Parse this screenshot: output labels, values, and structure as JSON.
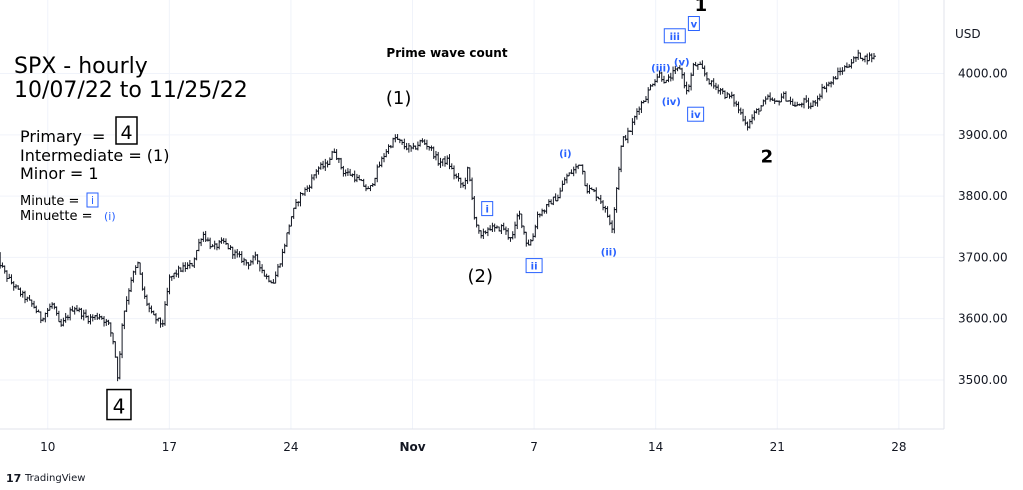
{
  "chart_data": {
    "type": "ohlc",
    "title": "SPX - hourly",
    "subtitle": "10/07/22 to 11/25/22",
    "chart_caption": "Prime wave count",
    "currency": "USD",
    "grid": true,
    "ylim": [
      3420,
      4120
    ],
    "y_ticks": [
      "3500.00",
      "3600.00",
      "3700.00",
      "3800.00",
      "3900.00",
      "4000.00"
    ],
    "y_tick_values": [
      3500,
      3600,
      3700,
      3800,
      3900,
      4000
    ],
    "x_ticks": [
      "10",
      "17",
      "24",
      "Nov",
      "7",
      "14",
      "21",
      "28"
    ],
    "legend": {
      "primary_label": "Primary  =",
      "primary_value": "4",
      "intermediate": "Intermediate = (1)",
      "minor": "Minor = 1",
      "minute_label": "Minute =",
      "minute_value": "i",
      "minuette_label": "Minuette =",
      "minuette_value": "(i)"
    },
    "wave_labels": [
      {
        "text": "4",
        "style": "boxed-large",
        "t": 14.1,
        "price": 3455
      },
      {
        "text": "(1)",
        "style": "black",
        "t": 30.2,
        "price": 3960
      },
      {
        "text": "(2)",
        "style": "black",
        "t": 34.9,
        "price": 3670
      },
      {
        "text": "i",
        "style": "boxed-blue",
        "t": 35.3,
        "price": 3778
      },
      {
        "text": "ii",
        "style": "boxed-blue",
        "t": 38.0,
        "price": 3685
      },
      {
        "text": "(i)",
        "style": "blue",
        "t": 39.8,
        "price": 3870
      },
      {
        "text": "(ii)",
        "style": "blue",
        "t": 42.3,
        "price": 3710
      },
      {
        "text": "(iii)",
        "style": "blue",
        "t": 45.3,
        "price": 4010
      },
      {
        "text": "iii",
        "style": "boxed-blue",
        "t": 46.1,
        "price": 4060
      },
      {
        "text": "(iv)",
        "style": "blue",
        "t": 45.9,
        "price": 3955
      },
      {
        "text": "(v)",
        "style": "blue",
        "t": 46.5,
        "price": 4020
      },
      {
        "text": "v",
        "style": "boxed-blue",
        "t": 47.2,
        "price": 4080
      },
      {
        "text": "iv",
        "style": "boxed-blue",
        "t": 47.3,
        "price": 3932
      },
      {
        "text": "1",
        "style": "black-bold",
        "t": 47.6,
        "price": 4112
      },
      {
        "text": "2",
        "style": "black-bold",
        "t": 51.4,
        "price": 3865
      }
    ],
    "price_path": [
      [
        7.0,
        3705
      ],
      [
        7.6,
        3670
      ],
      [
        8.3,
        3645
      ],
      [
        9.2,
        3620
      ],
      [
        9.6,
        3600
      ],
      [
        10.3,
        3625
      ],
      [
        10.7,
        3585
      ],
      [
        11.5,
        3620
      ],
      [
        12.3,
        3600
      ],
      [
        13.0,
        3605
      ],
      [
        13.5,
        3590
      ],
      [
        13.8,
        3560
      ],
      [
        14.05,
        3500
      ],
      [
        14.3,
        3600
      ],
      [
        14.8,
        3665
      ],
      [
        15.2,
        3690
      ],
      [
        15.5,
        3640
      ],
      [
        16.0,
        3605
      ],
      [
        16.6,
        3590
      ],
      [
        17.0,
        3665
      ],
      [
        17.6,
        3680
      ],
      [
        18.3,
        3688
      ],
      [
        18.9,
        3740
      ],
      [
        19.5,
        3715
      ],
      [
        20.1,
        3725
      ],
      [
        20.8,
        3705
      ],
      [
        21.5,
        3690
      ],
      [
        22.0,
        3700
      ],
      [
        22.5,
        3670
      ],
      [
        23.0,
        3660
      ],
      [
        23.5,
        3705
      ],
      [
        24.0,
        3765
      ],
      [
        24.5,
        3800
      ],
      [
        25.0,
        3815
      ],
      [
        25.5,
        3845
      ],
      [
        26.0,
        3850
      ],
      [
        26.5,
        3875
      ],
      [
        27.0,
        3840
      ],
      [
        27.5,
        3835
      ],
      [
        28.1,
        3820
      ],
      [
        28.5,
        3808
      ],
      [
        29.0,
        3845
      ],
      [
        29.5,
        3875
      ],
      [
        30.0,
        3895
      ],
      [
        30.5,
        3882
      ],
      [
        31.0,
        3875
      ],
      [
        31.5,
        3890
      ],
      [
        32.0,
        3880
      ],
      [
        32.5,
        3855
      ],
      [
        33.0,
        3858
      ],
      [
        33.4,
        3835
      ],
      [
        33.9,
        3815
      ],
      [
        34.2,
        3845
      ],
      [
        34.55,
        3770
      ],
      [
        34.9,
        3730
      ],
      [
        35.4,
        3750
      ],
      [
        35.8,
        3745
      ],
      [
        36.2,
        3750
      ],
      [
        36.5,
        3735
      ],
      [
        36.8,
        3735
      ],
      [
        37.1,
        3775
      ],
      [
        37.3,
        3755
      ],
      [
        37.6,
        3720
      ],
      [
        37.9,
        3730
      ],
      [
        38.2,
        3770
      ],
      [
        38.6,
        3778
      ],
      [
        39.0,
        3792
      ],
      [
        39.4,
        3800
      ],
      [
        39.8,
        3830
      ],
      [
        40.2,
        3840
      ],
      [
        40.7,
        3855
      ],
      [
        41.0,
        3812
      ],
      [
        41.4,
        3808
      ],
      [
        41.8,
        3795
      ],
      [
        42.2,
        3770
      ],
      [
        42.5,
        3750
      ],
      [
        43.05,
        3890
      ],
      [
        43.5,
        3905
      ],
      [
        44.0,
        3945
      ],
      [
        44.4,
        3960
      ],
      [
        44.8,
        3985
      ],
      [
        45.2,
        4000
      ],
      [
        45.6,
        3985
      ],
      [
        46.0,
        4000
      ],
      [
        46.4,
        4010
      ],
      [
        46.8,
        3968
      ],
      [
        47.2,
        4015
      ],
      [
        47.6,
        4010
      ],
      [
        48.0,
        3990
      ],
      [
        48.3,
        3980
      ],
      [
        48.7,
        3975
      ],
      [
        49.0,
        3965
      ],
      [
        49.4,
        3960
      ],
      [
        49.9,
        3935
      ],
      [
        50.3,
        3915
      ],
      [
        50.7,
        3935
      ],
      [
        51.1,
        3948
      ],
      [
        51.5,
        3960
      ],
      [
        51.9,
        3950
      ],
      [
        52.3,
        3965
      ],
      [
        52.7,
        3955
      ],
      [
        53.1,
        3945
      ],
      [
        53.5,
        3955
      ],
      [
        53.9,
        3945
      ],
      [
        54.3,
        3960
      ],
      [
        54.7,
        3980
      ],
      [
        55.1,
        3985
      ],
      [
        55.5,
        4000
      ],
      [
        55.9,
        4010
      ],
      [
        56.3,
        4020
      ],
      [
        56.7,
        4030
      ],
      [
        57.1,
        4025
      ],
      [
        57.4,
        4028
      ],
      [
        57.7,
        4025
      ]
    ]
  },
  "footer": {
    "brand_mark": "17",
    "brand": "TradingView"
  }
}
